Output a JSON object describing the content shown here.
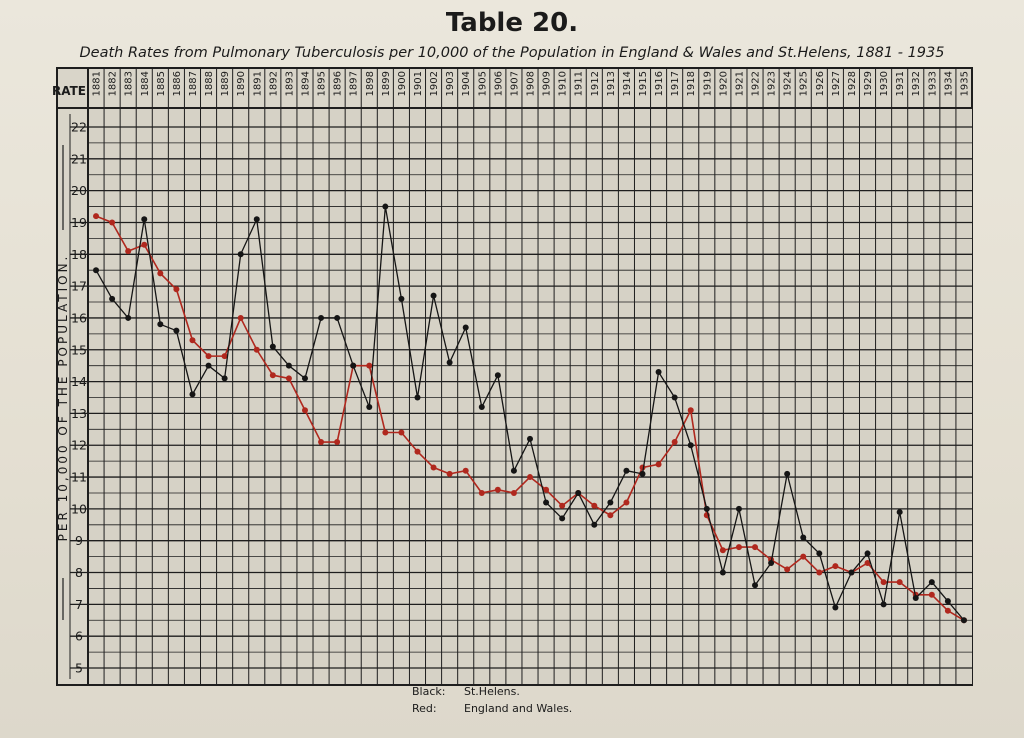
{
  "title": "Table 20.",
  "subtitle": "Death Rates from Pulmonary Tuberculosis per 10,000 of the Population in England & Wales and St.Helens, 1881 - 1935",
  "rate_header": "RATE",
  "legend": {
    "black_key": "Black:",
    "black_value": "St.Helens.",
    "red_key": "Red:",
    "red_value": "England and Wales."
  },
  "colors": {
    "st_helens": "#151515",
    "england_wales": "#b0281e",
    "grid": "#1e1e1e"
  },
  "chart_data": {
    "type": "line",
    "title": "Table 20.",
    "subtitle": "Death Rates from Pulmonary Tuberculosis per 10,000 of the Population in England & Wales and St.Helens, 1881 - 1935",
    "ylabel": "PER 10,000 OF THE POPULATION.",
    "xlabel": "",
    "ylim": [
      5,
      22
    ],
    "yticks": [
      5,
      6,
      7,
      8,
      9,
      10,
      11,
      12,
      13,
      14,
      15,
      16,
      17,
      18,
      19,
      20,
      21,
      22
    ],
    "grid": true,
    "years": [
      1881,
      1882,
      1883,
      1884,
      1885,
      1886,
      1887,
      1888,
      1889,
      1890,
      1891,
      1892,
      1893,
      1894,
      1895,
      1896,
      1897,
      1898,
      1899,
      1900,
      1901,
      1902,
      1903,
      1904,
      1905,
      1906,
      1907,
      1908,
      1909,
      1910,
      1911,
      1912,
      1913,
      1914,
      1915,
      1916,
      1917,
      1918,
      1919,
      1920,
      1921,
      1922,
      1923,
      1924,
      1925,
      1926,
      1927,
      1928,
      1929,
      1930,
      1931,
      1932,
      1933,
      1934,
      1935
    ],
    "series": [
      {
        "name": "St.Helens.",
        "color": "#151515",
        "values": [
          17.5,
          16.6,
          16.0,
          19.1,
          15.8,
          15.6,
          13.6,
          14.5,
          14.1,
          18.0,
          19.1,
          15.1,
          14.5,
          14.1,
          16.0,
          16.0,
          14.5,
          13.2,
          19.5,
          16.6,
          13.5,
          16.7,
          14.6,
          15.7,
          13.2,
          14.2,
          11.2,
          12.2,
          10.2,
          9.7,
          10.5,
          9.5,
          10.2,
          11.2,
          11.1,
          14.3,
          13.5,
          12.0,
          10.0,
          8.0,
          10.0,
          7.6,
          8.3,
          11.1,
          9.1,
          8.6,
          6.9,
          8.0,
          8.6,
          7.0,
          9.9,
          7.2,
          7.7,
          7.1,
          6.5
        ]
      },
      {
        "name": "England and Wales.",
        "color": "#b0281e",
        "values": [
          19.2,
          19.0,
          18.1,
          18.3,
          17.4,
          16.9,
          15.3,
          14.8,
          14.8,
          16.0,
          15.0,
          14.2,
          14.1,
          13.1,
          12.1,
          12.1,
          14.5,
          14.5,
          12.4,
          12.4,
          11.8,
          11.3,
          11.1,
          11.2,
          10.5,
          10.6,
          10.5,
          11.0,
          10.6,
          10.1,
          10.5,
          10.1,
          9.8,
          10.2,
          11.3,
          11.4,
          12.1,
          13.1,
          9.8,
          8.7,
          8.8,
          8.8,
          8.4,
          8.1,
          8.5,
          8.0,
          8.2,
          8.0,
          8.3,
          7.7,
          7.7,
          7.3,
          7.3,
          6.8,
          6.5
        ]
      }
    ]
  }
}
